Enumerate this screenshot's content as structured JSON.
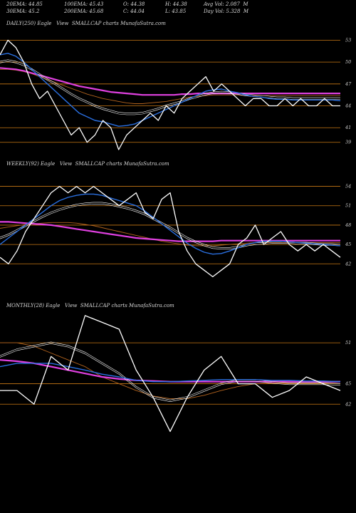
{
  "header": {
    "row1": [
      "20EMA: 44.85",
      "100EMA: 45.43",
      "O: 44.38",
      "H: 44.38",
      "Avg Vol: 2.087  M"
    ],
    "row2": [
      "30EMA: 45.2",
      "200EMA: 45.68",
      "C: 44.04",
      "L: 43.85",
      "Day Vol: 5.328  M"
    ]
  },
  "colors": {
    "background": "#000000",
    "grid": "#c87814",
    "price": "#ffffff",
    "ema20": "#2a6fe0",
    "ema200": "#e040e0",
    "ema30": "#ffffff",
    "ema100": "#b4641e"
  },
  "chart_data": [
    {
      "type": "line",
      "label": "DAILY(250) Eagle   View  SMALLCAP charts MunafaSutra.com",
      "ticks": [
        53,
        50,
        47,
        44,
        41,
        39
      ],
      "ylim": [
        37.8,
        54.6
      ],
      "series": [
        {
          "name": "Price",
          "values": [
            51,
            53,
            52,
            50,
            47,
            45,
            46,
            44,
            42,
            40,
            41,
            39,
            40,
            42,
            41,
            38,
            40,
            41,
            42,
            43,
            42,
            44,
            43,
            45,
            46,
            47,
            48,
            46,
            47,
            46,
            45,
            44,
            45,
            45,
            44,
            44,
            45,
            44,
            45,
            44,
            44,
            45,
            44,
            44
          ]
        },
        {
          "name": "EMA20",
          "values": [
            51,
            51.2,
            50.8,
            50,
            49,
            48,
            47,
            46,
            45,
            44,
            43,
            42.5,
            42,
            41.8,
            41.5,
            41.2,
            41.3,
            41.5,
            42,
            42.5,
            43,
            43.5,
            44,
            44.5,
            45,
            45.5,
            46,
            46.2,
            46.3,
            46,
            45.8,
            45.5,
            45.3,
            45.2,
            45,
            44.9,
            44.9,
            44.8,
            44.8,
            44.8,
            44.8,
            44.8,
            44.8,
            44.7
          ]
        },
        {
          "name": "EMA30",
          "values": [
            50,
            50.2,
            50,
            49.6,
            49,
            48.3,
            47.6,
            47,
            46.3,
            45.6,
            45,
            44.5,
            44,
            43.6,
            43.3,
            43,
            42.9,
            42.9,
            43,
            43.3,
            43.6,
            44,
            44.3,
            44.6,
            45,
            45.3,
            45.6,
            45.8,
            45.9,
            45.8,
            45.7,
            45.5,
            45.4,
            45.3,
            45.2,
            45.1,
            45.1,
            45,
            45,
            45,
            45,
            45,
            45,
            45
          ]
        },
        {
          "name": "EMA100",
          "values": [
            49,
            49,
            48.9,
            48.7,
            48.4,
            48,
            47.6,
            47.2,
            46.8,
            46.4,
            46,
            45.6,
            45.3,
            45,
            44.8,
            44.6,
            44.4,
            44.3,
            44.3,
            44.4,
            44.5,
            44.6,
            44.8,
            45,
            45.2,
            45.3,
            45.4,
            45.5,
            45.5,
            45.5,
            45.5,
            45.4,
            45.4,
            45.4,
            45.4,
            45.4,
            45.4,
            45.4,
            45.4,
            45.4,
            45.4,
            45.4,
            45.4,
            45.4
          ]
        },
        {
          "name": "EMA200",
          "values": [
            49.2,
            49.1,
            49,
            48.8,
            48.5,
            48.2,
            47.9,
            47.6,
            47.3,
            47,
            46.7,
            46.5,
            46.3,
            46.1,
            45.9,
            45.8,
            45.7,
            45.6,
            45.5,
            45.5,
            45.5,
            45.5,
            45.5,
            45.6,
            45.6,
            45.7,
            45.7,
            45.7,
            45.7,
            45.7,
            45.7,
            45.7,
            45.7,
            45.7,
            45.7,
            45.7,
            45.7,
            45.7,
            45.7,
            45.7,
            45.7,
            45.7,
            45.7,
            45.7
          ]
        }
      ]
    },
    {
      "type": "line",
      "label": "WEEKLY(92) Eagle   View  SMALLCAP charts MunafaSutra.com",
      "ticks": [
        54,
        51,
        48,
        45,
        42
      ],
      "ylim": [
        38.5,
        56.6
      ],
      "series": [
        {
          "name": "Price",
          "values": [
            43,
            42,
            44,
            47,
            49,
            51,
            53,
            54,
            53,
            54,
            53,
            54,
            53,
            52,
            51,
            52,
            53,
            50,
            49,
            52,
            53,
            47,
            44,
            42,
            41,
            40,
            41,
            42,
            45,
            46,
            48,
            45,
            46,
            47,
            45,
            44,
            45,
            44,
            45,
            44,
            43
          ]
        },
        {
          "name": "EMA20",
          "values": [
            45,
            46,
            47,
            48,
            49,
            50,
            51,
            51.8,
            52.3,
            52.6,
            52.8,
            52.8,
            52.6,
            52.2,
            51.8,
            51.4,
            51,
            50.2,
            49.2,
            48.2,
            47.2,
            46.2,
            45.2,
            44.4,
            43.8,
            43.5,
            43.6,
            44,
            44.5,
            45,
            45.3,
            45.5,
            45.5,
            45.5,
            45.4,
            45.3,
            45.2,
            45.1,
            45,
            44.9,
            44.8
          ]
        },
        {
          "name": "EMA30",
          "values": [
            46,
            46.5,
            47.2,
            47.9,
            48.6,
            49.3,
            49.9,
            50.4,
            50.8,
            51.1,
            51.3,
            51.4,
            51.4,
            51.2,
            50.9,
            50.6,
            50.2,
            49.7,
            49,
            48.3,
            47.6,
            46.8,
            46,
            45.4,
            44.9,
            44.5,
            44.4,
            44.4,
            44.6,
            44.9,
            45.1,
            45.2,
            45.3,
            45.3,
            45.3,
            45.2,
            45.2,
            45.1,
            45,
            45,
            44.9
          ]
        },
        {
          "name": "EMA100",
          "values": [
            47.5,
            47.7,
            47.9,
            48.1,
            48.2,
            48.3,
            48.4,
            48.4,
            48.4,
            48.3,
            48.1,
            47.9,
            47.6,
            47.3,
            47,
            46.7,
            46.4,
            46.1,
            45.8,
            45.5,
            45.3,
            45.1,
            44.9,
            44.8,
            44.8,
            44.8,
            44.9,
            45,
            45.1,
            45.2,
            45.3,
            45.3,
            45.3,
            45.3,
            45.3,
            45.3,
            45.3,
            45.3,
            45.3,
            45.3,
            45.3
          ]
        },
        {
          "name": "EMA200",
          "values": [
            48.5,
            48.5,
            48.4,
            48.3,
            48.2,
            48.1,
            48,
            47.8,
            47.6,
            47.4,
            47.2,
            47,
            46.8,
            46.6,
            46.4,
            46.2,
            46,
            45.9,
            45.8,
            45.7,
            45.6,
            45.5,
            45.5,
            45.5,
            45.5,
            45.5,
            45.6,
            45.6,
            45.6,
            45.6,
            45.6,
            45.6,
            45.6,
            45.6,
            45.6,
            45.6,
            45.6,
            45.6,
            45.6,
            45.6,
            45.6
          ]
        }
      ]
    },
    {
      "type": "line",
      "label": "MONTHLY(28) Eagle   View  SMALLCAP charts MunafaSutra.com",
      "ticks": [
        51,
        45,
        42
      ],
      "ylim": [
        34.4,
        55.3
      ],
      "series": [
        {
          "name": "Price",
          "values": [
            44,
            44,
            42,
            49,
            47,
            55,
            54,
            53,
            47,
            43,
            38,
            43,
            47,
            49,
            45,
            45,
            43,
            44,
            46,
            45,
            44
          ]
        },
        {
          "name": "EMA20",
          "values": [
            47.5,
            48,
            48,
            48,
            47.5,
            47,
            46.4,
            46,
            45.5,
            45.3,
            45.3,
            45.4,
            45.5,
            45.6,
            45.6,
            45.6,
            45.5,
            45.5,
            45.4,
            45.4,
            45.3
          ]
        },
        {
          "name": "EMA30",
          "values": [
            49,
            50,
            50.5,
            51,
            50.5,
            49.5,
            48,
            46.5,
            44.5,
            43,
            42.5,
            43,
            44,
            45,
            45.5,
            45.5,
            45.2,
            45,
            45,
            45,
            44.9
          ]
        },
        {
          "name": "EMA100",
          "values": [
            51,
            51,
            50.5,
            49.5,
            48.5,
            47.5,
            46,
            45,
            44,
            43.2,
            42.8,
            42.8,
            43.3,
            44,
            44.6,
            45,
            45.1,
            45.1,
            45.1,
            45.1,
            45
          ]
        },
        {
          "name": "EMA200",
          "values": [
            48.5,
            48.3,
            48,
            47.5,
            47,
            46.5,
            46,
            45.7,
            45.5,
            45.4,
            45.3,
            45.3,
            45.3,
            45.3,
            45.3,
            45.3,
            45.3,
            45.3,
            45.3,
            45.3,
            45.3
          ]
        }
      ]
    }
  ]
}
